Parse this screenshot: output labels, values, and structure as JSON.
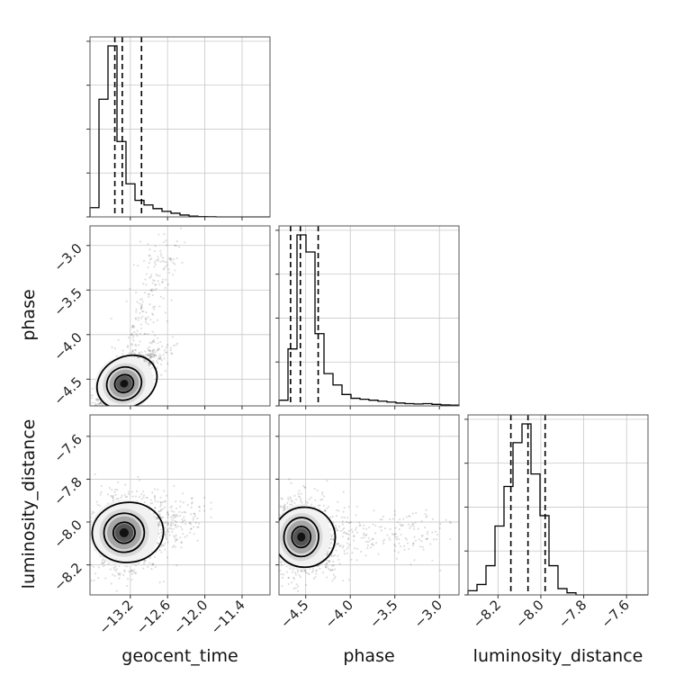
{
  "chart_data": {
    "type": "corner",
    "parameters": [
      "geocent_time",
      "phase",
      "luminosity_distance"
    ],
    "axis_labels": {
      "geocent_time": "geocent_time",
      "phase": "phase",
      "luminosity_distance": "luminosity_distance"
    },
    "ranges": {
      "geocent_time": [
        -13.85,
        -10.95
      ],
      "phase": [
        -4.8,
        -2.78
      ],
      "luminosity_distance": [
        -8.34,
        -7.5
      ]
    },
    "ticks": {
      "geocent_time": [
        {
          "v": -13.2,
          "label": "−13.2"
        },
        {
          "v": -12.6,
          "label": "−12.6"
        },
        {
          "v": -12.0,
          "label": "−12.0"
        },
        {
          "v": -11.4,
          "label": "−11.4"
        }
      ],
      "phase": [
        {
          "v": -4.5,
          "label": "−4.5"
        },
        {
          "v": -4.0,
          "label": "−4.0"
        },
        {
          "v": -3.5,
          "label": "−3.5"
        },
        {
          "v": -3.0,
          "label": "−3.0"
        }
      ],
      "luminosity_distance": [
        {
          "v": -8.2,
          "label": "−8.2"
        },
        {
          "v": -8.0,
          "label": "−8.0"
        },
        {
          "v": -7.8,
          "label": "−7.8"
        },
        {
          "v": -7.6,
          "label": "−7.6"
        }
      ]
    },
    "histograms": {
      "geocent_time": {
        "edges": [
          -13.85,
          -13.705,
          -13.56,
          -13.415,
          -13.27,
          -13.125,
          -12.98,
          -12.835,
          -12.69,
          -12.545,
          -12.4,
          -12.255,
          -12.11,
          -11.965,
          -11.82,
          -11.675,
          -11.53,
          -11.385,
          -11.24,
          -11.095,
          -10.95
        ],
        "counts": [
          0.05,
          0.64,
          0.93,
          0.41,
          0.18,
          0.09,
          0.065,
          0.045,
          0.03,
          0.02,
          0.01,
          0.004,
          0.002,
          0.001,
          0,
          0,
          0,
          0,
          0,
          0
        ],
        "quantiles": [
          -13.45,
          -13.33,
          -13.02
        ]
      },
      "phase": {
        "edges": [
          -4.8,
          -4.699,
          -4.598,
          -4.497,
          -4.396,
          -4.295,
          -4.194,
          -4.093,
          -3.992,
          -3.891,
          -3.79,
          -3.689,
          -3.588,
          -3.487,
          -3.386,
          -3.285,
          -3.184,
          -3.083,
          -2.982,
          -2.881,
          -2.78
        ],
        "counts": [
          0.03,
          0.3,
          0.9,
          0.81,
          0.38,
          0.17,
          0.11,
          0.06,
          0.04,
          0.035,
          0.03,
          0.025,
          0.02,
          0.015,
          0.012,
          0.01,
          0.012,
          0.008,
          0.005,
          0.004
        ],
        "quantiles": [
          -4.67,
          -4.56,
          -4.36
        ]
      },
      "luminosity_distance": {
        "edges": [
          -8.34,
          -8.298,
          -8.256,
          -8.214,
          -8.172,
          -8.13,
          -8.088,
          -8.046,
          -8.004,
          -7.962,
          -7.92,
          -7.878,
          -7.836,
          -7.794,
          -7.752,
          -7.71,
          -7.668,
          -7.626,
          -7.584,
          -7.542,
          -7.5
        ],
        "counts": [
          0.02,
          0.05,
          0.14,
          0.33,
          0.52,
          0.73,
          0.82,
          0.58,
          0.38,
          0.14,
          0.03,
          0.01,
          0,
          0,
          0,
          0,
          0,
          0,
          0,
          0
        ],
        "quantiles": [
          -8.14,
          -8.06,
          -7.98
        ]
      }
    },
    "joint": {
      "phase_vs_geocent_time": {
        "center": [
          -13.3,
          -4.55
        ],
        "sd": [
          0.22,
          0.14
        ],
        "rho": 0.85,
        "tail_to": [
          -12.6,
          -2.95
        ],
        "contour_levels": [
          0.7,
          1.3,
          2.0
        ]
      },
      "luminosity_distance_vs_geocent_time": {
        "center": [
          -13.3,
          -8.05
        ],
        "sd": [
          0.25,
          0.07
        ],
        "rho": 0.15,
        "tail_to": [
          -12.2,
          -8.0
        ],
        "contour_levels": [
          0.7,
          1.3,
          2.0
        ]
      },
      "luminosity_distance_vs_phase": {
        "center": [
          -4.55,
          -8.07
        ],
        "sd": [
          0.15,
          0.07
        ],
        "rho": -0.1,
        "tail_to": [
          -3.0,
          -8.05
        ],
        "contour_levels": [
          0.7,
          1.3,
          2.0
        ]
      }
    },
    "grid": true
  }
}
